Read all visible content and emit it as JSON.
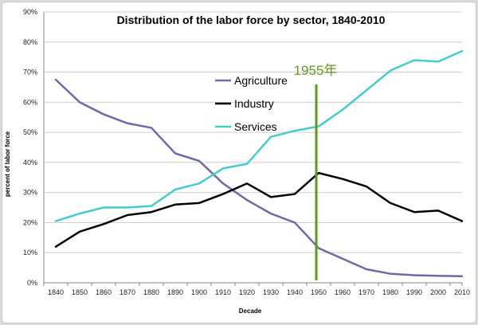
{
  "colors": {
    "agriculture": "#6f6aa6",
    "industry": "#000000",
    "services": "#44cdc8",
    "marker": "#5f9a1e",
    "grid": "#cfcfcf",
    "axis": "#888888"
  },
  "chart_data": {
    "type": "line",
    "title": "Distribution of the labor force by sector, 1840-2010",
    "xlabel": "Decade",
    "ylabel": "percent of labor force",
    "x": [
      1840,
      1850,
      1860,
      1870,
      1880,
      1890,
      1900,
      1910,
      1920,
      1930,
      1940,
      1950,
      1960,
      1970,
      1980,
      1990,
      2000,
      2010
    ],
    "ylim": [
      0,
      90
    ],
    "yticks": [
      "0%",
      "10%",
      "20%",
      "30%",
      "40%",
      "50%",
      "60%",
      "70%",
      "80%",
      "90%"
    ],
    "grid": true,
    "legend_position": "center",
    "series": [
      {
        "name": "Agriculture",
        "color_key": "agriculture",
        "values": [
          67.5,
          60.0,
          56.0,
          53.0,
          51.5,
          43.0,
          40.5,
          33.0,
          27.5,
          23.0,
          20.0,
          11.5,
          8.0,
          4.5,
          3.0,
          2.5,
          2.3,
          2.2
        ]
      },
      {
        "name": "Industry",
        "color_key": "industry",
        "values": [
          12.0,
          17.0,
          19.5,
          22.5,
          23.5,
          26.0,
          26.5,
          29.5,
          33.0,
          28.5,
          29.5,
          36.5,
          34.5,
          32.0,
          26.5,
          23.5,
          24.0,
          20.5
        ]
      },
      {
        "name": "Services",
        "color_key": "services",
        "values": [
          20.5,
          23.0,
          25.0,
          25.0,
          25.5,
          31.0,
          33.0,
          38.0,
          39.5,
          48.5,
          50.5,
          52.0,
          57.5,
          64.0,
          70.5,
          74.0,
          73.5,
          77.0
        ]
      }
    ],
    "annotation": {
      "label": "1955年",
      "x": 1950
    }
  }
}
